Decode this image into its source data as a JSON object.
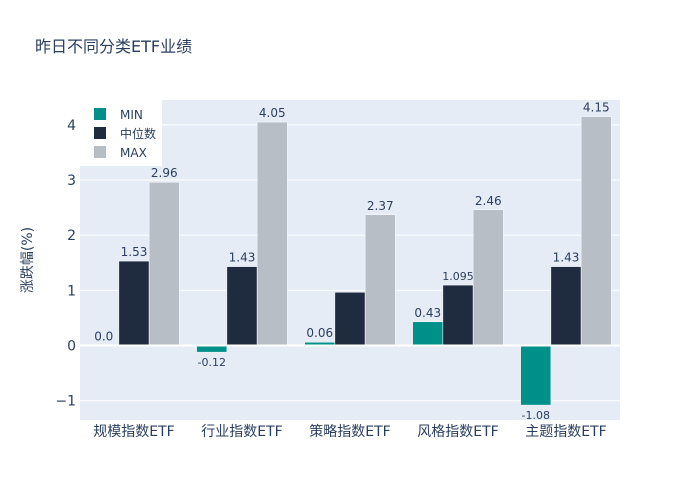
{
  "chart_data": {
    "type": "bar",
    "title": "昨日不同分类ETF业绩",
    "xlabel": "",
    "ylabel": "涨跌幅(%)",
    "ylim": [
      -1.35,
      4.45
    ],
    "yticks": [
      -1,
      0,
      1,
      2,
      3,
      4
    ],
    "ytick_labels": [
      "−1",
      "0",
      "1",
      "2",
      "3",
      "4"
    ],
    "categories": [
      "规模指数ETF",
      "行业指数ETF",
      "策略指数ETF",
      "风格指数ETF",
      "主题指数ETF"
    ],
    "series": [
      {
        "name": "MIN",
        "values": [
          0.0,
          -0.12,
          0.06,
          0.43,
          -1.08
        ],
        "labels": [
          "0.0",
          "-0.12",
          "0.06",
          "0.43",
          "-1.08"
        ],
        "color": "#00908a"
      },
      {
        "name": "中位数",
        "values": [
          1.53,
          1.43,
          0.965,
          1.095,
          1.43
        ],
        "labels": [
          "1.53",
          "1.43",
          "",
          "1.095",
          "1.43"
        ],
        "color": "#1f2b3e"
      },
      {
        "name": "MAX",
        "values": [
          2.96,
          4.05,
          2.37,
          2.46,
          4.15
        ],
        "labels": [
          "2.96",
          "4.05",
          "2.37",
          "2.46",
          "4.15"
        ],
        "color": "#b7bec6"
      }
    ],
    "legend_position": "top-left",
    "grid": true,
    "plot_bg": "#e5ecf6",
    "text_color": "#2a3f5f"
  }
}
